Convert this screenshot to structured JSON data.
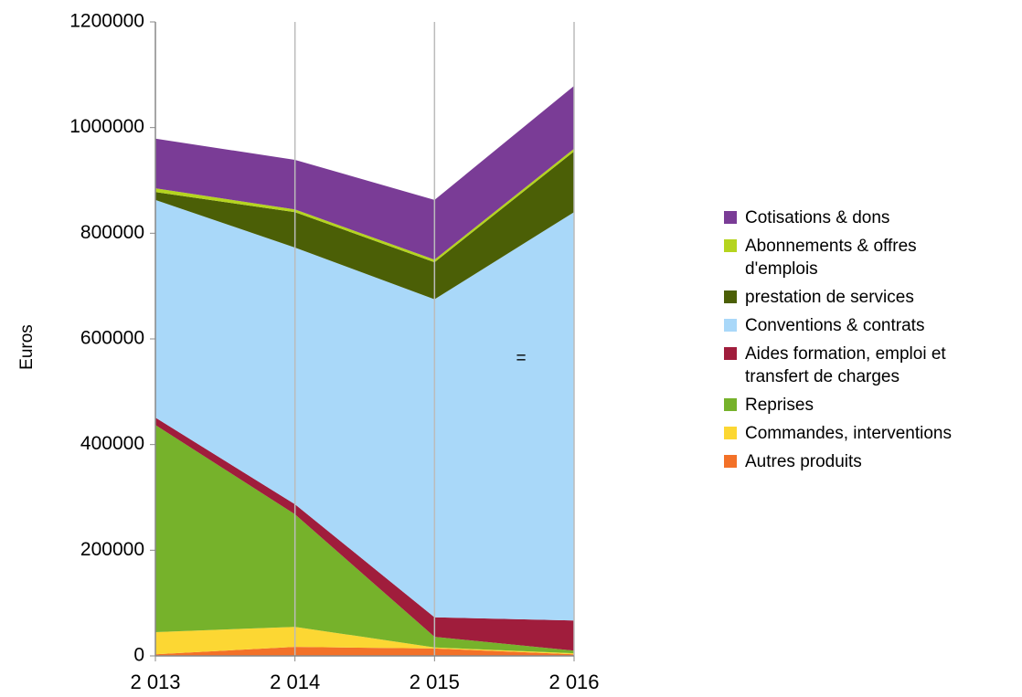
{
  "chart_data": {
    "type": "stacked_area",
    "y_label": "Euros",
    "categories": [
      "2 013",
      "2 014",
      "2 015",
      "2 016"
    ],
    "series": [
      {
        "name": "Autres produits",
        "color": "#f37128",
        "values": [
          3000,
          17000,
          14000,
          3000
        ]
      },
      {
        "name": "Commandes, interventions",
        "color": "#fcd733",
        "values": [
          42000,
          38000,
          2000,
          2000
        ]
      },
      {
        "name": "Reprises",
        "color": "#76b22b",
        "values": [
          392000,
          213000,
          20000,
          5000
        ]
      },
      {
        "name": "Aides formation, emploi et transfert de charges",
        "color": "#a01d3c",
        "values": [
          14000,
          19000,
          37000,
          57000
        ]
      },
      {
        "name": "Conventions & contrats",
        "color": "#a9d8f9",
        "values": [
          412000,
          486000,
          602000,
          773000
        ]
      },
      {
        "name": "prestation de services",
        "color": "#4b5f06",
        "values": [
          15000,
          67000,
          70000,
          115000
        ]
      },
      {
        "name": "Abonnements & offres d'emplois",
        "color": "#b5d41f",
        "values": [
          7000,
          5000,
          5000,
          5000
        ]
      },
      {
        "name": "Cotisations & dons",
        "color": "#7a3c96",
        "values": [
          94000,
          94000,
          113000,
          119000
        ]
      }
    ],
    "annotation": "=",
    "ylim": [
      0,
      1200000
    ],
    "yticks": [
      0,
      200000,
      400000,
      600000,
      800000,
      1000000,
      1200000
    ],
    "grid": true
  }
}
